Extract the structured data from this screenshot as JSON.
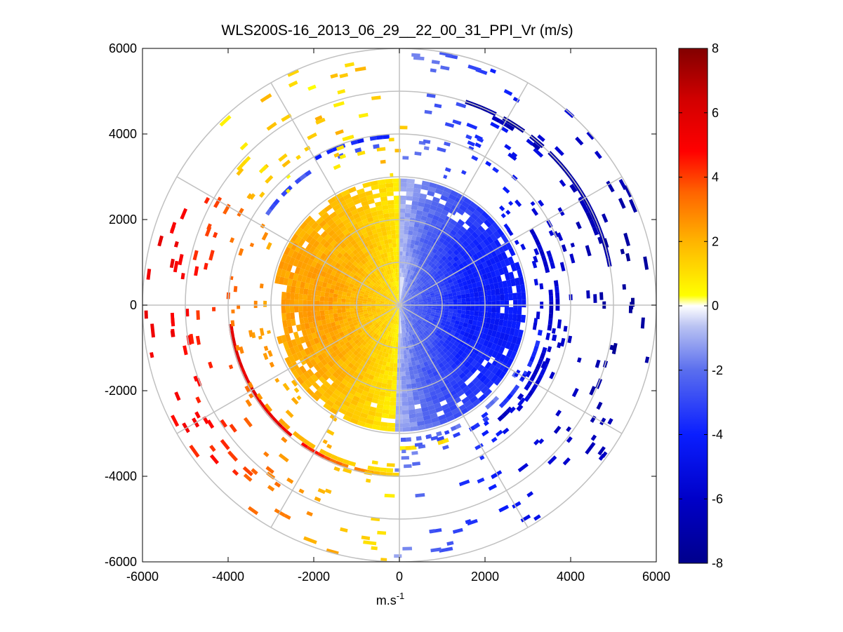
{
  "chart_data": {
    "type": "heatmap",
    "title": "WLS200S-16_2013_06_29__22_00_31_PPI_Vr (m/s)",
    "xlabel_main": "m.s",
    "xlabel_sup": "-1",
    "ylabel": "",
    "xlim": [
      -6000,
      6000
    ],
    "ylim": [
      -6000,
      6000
    ],
    "xticks": [
      -6000,
      -4000,
      -2000,
      0,
      2000,
      4000,
      6000
    ],
    "yticks": [
      -6000,
      -4000,
      -2000,
      0,
      2000,
      4000,
      6000
    ],
    "xtick_labels": [
      "-6000",
      "-4000",
      "-2000",
      "0",
      "2000",
      "4000",
      "6000"
    ],
    "ytick_labels": [
      "-6000",
      "-4000",
      "-2000",
      "0",
      "2000",
      "4000",
      "6000"
    ],
    "polar_grid": {
      "ring_radii": [
        1000,
        2000,
        3000,
        4000,
        5000,
        6000
      ],
      "spoke_angles_deg": [
        0,
        30,
        60,
        90,
        120,
        150,
        180,
        210,
        240,
        270,
        300,
        330
      ]
    },
    "colorbar": {
      "range": [
        -8,
        8
      ],
      "ticks": [
        8,
        6,
        4,
        2,
        0,
        -2,
        -4,
        -6,
        -8
      ],
      "tick_labels": [
        "8",
        "6",
        "4",
        "2",
        "0",
        "-2",
        "-4",
        "-6",
        "-8"
      ],
      "colormap": "blue-white-yellow-red"
    },
    "field_description": {
      "inner_positive_sector": "azimuth 180-360 (west), radial velocity 0.5 to 2.5 m/s",
      "inner_negative_sector": "azimuth 0-180 (east), radial velocity -0.5 to -5 m/s",
      "outer_south_arc": "range about 4000 m, azimuth 180-260, velocity 2 to 6 m/s",
      "outer_northeast_arc": "range about 5000 m, azimuth 20-80, velocity -6 to -7.5 m/s",
      "outer_east_arc": "range about 3400-3900 m, azimuth 60-140, velocity -5 to -6.5 m/s"
    }
  }
}
